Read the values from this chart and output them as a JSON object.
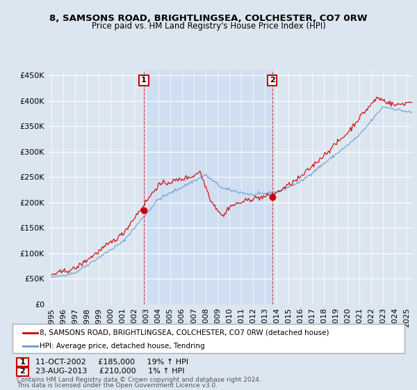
{
  "title": "8, SAMSONS ROAD, BRIGHTLINGSEA, COLCHESTER, CO7 0RW",
  "subtitle": "Price paid vs. HM Land Registry's House Price Index (HPI)",
  "title_color": "#000000",
  "background_color": "#dce6f0",
  "plot_bg_color": "#dce6f0",
  "sale1_date": "11-OCT-2002",
  "sale1_price": 185000,
  "sale1_pct": "19%",
  "sale2_date": "23-AUG-2013",
  "sale2_price": 210000,
  "sale2_pct": "1%",
  "red_line_color": "#cc0000",
  "blue_line_color": "#6699cc",
  "shade_color": "#ccddf0",
  "legend_label1": "8, SAMSONS ROAD, BRIGHTLINGSEA, COLCHESTER, CO7 0RW (detached house)",
  "legend_label2": "HPI: Average price, detached house, Tendring",
  "footer1": "Contains HM Land Registry data © Crown copyright and database right 2024.",
  "footer2": "This data is licensed under the Open Government Licence v3.0.",
  "ylim_min": 0,
  "ylim_max": 450000,
  "yticks": [
    0,
    50000,
    100000,
    150000,
    200000,
    250000,
    300000,
    350000,
    400000,
    450000
  ],
  "sale1_year": 2002.79,
  "sale2_year": 2013.63
}
